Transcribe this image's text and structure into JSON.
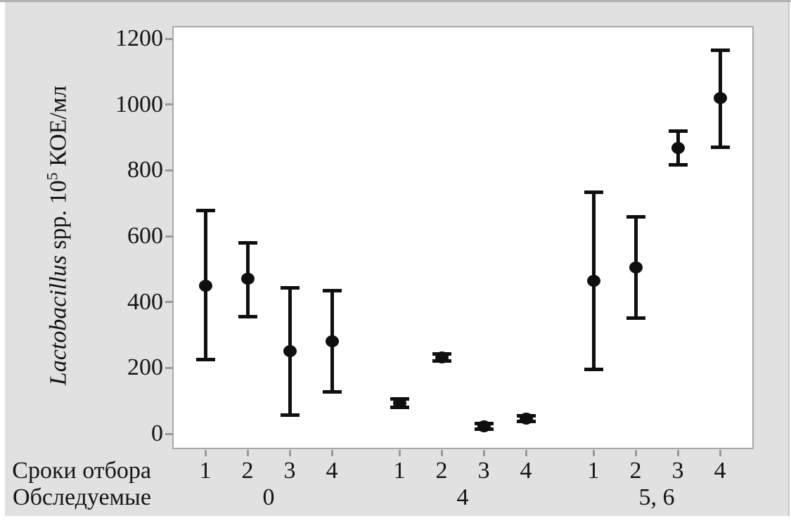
{
  "chart_data": {
    "type": "scatter",
    "subtype": "interval-plot-means-with-error-bars",
    "title": "",
    "ylabel_text": "Lactobacillus spp. 10⁵ КОЕ/мл",
    "ylabel_parts": {
      "genus_italic": "Lactobacillus",
      "middle": " spp. 10",
      "superscript": "5",
      "unit": " КОЕ/мл"
    },
    "ylim": [
      0,
      1200
    ],
    "yticks": [
      0,
      200,
      400,
      600,
      800,
      1000,
      1200
    ],
    "grid": "off",
    "legend": "none",
    "x_axis_rows": [
      {
        "label": "Сроки отбора"
      },
      {
        "label": "Обследуемые"
      }
    ],
    "groups": [
      {
        "label": "0",
        "points": [
          {
            "time": "1",
            "mean": 450,
            "ci_low": 225,
            "ci_high": 680
          },
          {
            "time": "2",
            "mean": 470,
            "ci_low": 355,
            "ci_high": 580
          },
          {
            "time": "3",
            "mean": 250,
            "ci_low": 55,
            "ci_high": 445
          },
          {
            "time": "4",
            "mean": 280,
            "ci_low": 125,
            "ci_high": 435
          }
        ]
      },
      {
        "label": "4",
        "points": [
          {
            "time": "1",
            "mean": 93,
            "ci_low": 80,
            "ci_high": 106
          },
          {
            "time": "2",
            "mean": 232,
            "ci_low": 220,
            "ci_high": 244
          },
          {
            "time": "3",
            "mean": 22,
            "ci_low": 12,
            "ci_high": 32
          },
          {
            "time": "4",
            "mean": 46,
            "ci_low": 36,
            "ci_high": 56
          }
        ]
      },
      {
        "label": "5, 6",
        "points": [
          {
            "time": "1",
            "mean": 465,
            "ci_low": 195,
            "ci_high": 735
          },
          {
            "time": "2",
            "mean": 505,
            "ci_low": 350,
            "ci_high": 660
          },
          {
            "time": "3",
            "mean": 868,
            "ci_low": 815,
            "ci_high": 920
          },
          {
            "time": "4",
            "mean": 1020,
            "ci_low": 870,
            "ci_high": 1165
          }
        ]
      }
    ],
    "colors": {
      "marker": "#0f0f0f",
      "text": "#141414",
      "tick": "#9a9a9a",
      "plot_border": "#a8a8a8",
      "panel_bg": "#e1e1e1",
      "plot_bg": "#ffffff"
    }
  }
}
